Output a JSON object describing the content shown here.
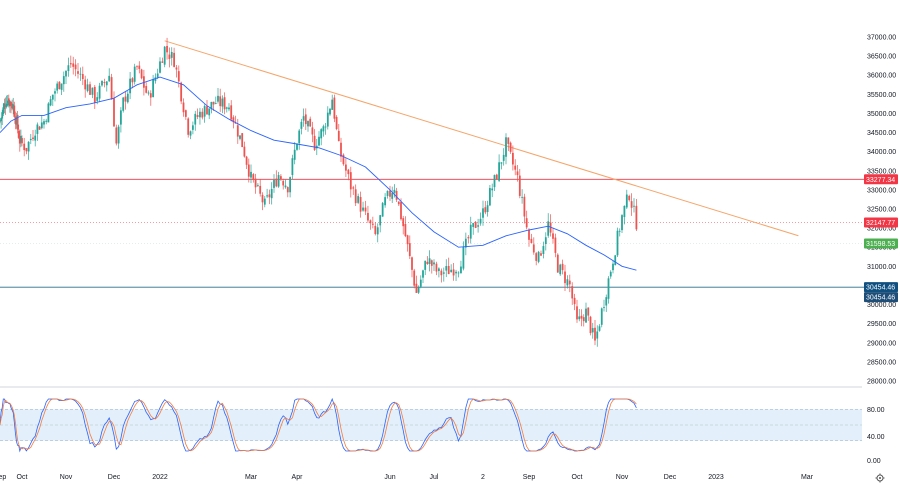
{
  "chart_data": {
    "type": "candlestick",
    "colors": {
      "up": "#26a69a",
      "down": "#ef5350",
      "ma": "#2962ff",
      "trendline": "#f5a56a",
      "resistance": "#f23645",
      "support": "#2a6f8a",
      "stoch_k": "#2962ff",
      "stoch_d": "#f57c3c",
      "stoch_band": "#e3f0fb",
      "tag_red": "#f23645",
      "tag_green": "#4caf50",
      "tag_blue1": "#0f5080",
      "tag_blue2": "#1e4d78"
    },
    "price_axis": {
      "min": 28000,
      "max": 37000,
      "ticks": [
        "37000.00",
        "36500.00",
        "36000.00",
        "35500.00",
        "35000.00",
        "34500.00",
        "34000.00",
        "33500.00",
        "33000.00",
        "32500.00",
        "32000.00",
        "31500.00",
        "31000.00",
        "30500.00",
        "30000.00",
        "29500.00",
        "29000.00",
        "28500.00",
        "28000.00"
      ]
    },
    "x_axis": {
      "labels": [
        {
          "text": "Sep",
          "month": 0
        },
        {
          "text": "Oct",
          "month": 1
        },
        {
          "text": "Nov",
          "month": 2
        },
        {
          "text": "Dec",
          "month": 3
        },
        {
          "text": "2022",
          "month": 4
        },
        {
          "text": "Mar",
          "month": 6
        },
        {
          "text": "Apr",
          "month": 7
        },
        {
          "text": "Jun",
          "month": 9
        },
        {
          "text": "Jul",
          "month": 10
        },
        {
          "text": "2",
          "month": 11
        },
        {
          "text": "Sep",
          "month": 12
        },
        {
          "text": "Oct",
          "month": 13
        },
        {
          "text": "Nov",
          "month": 14
        },
        {
          "text": "Dec",
          "month": 15
        },
        {
          "text": "2023",
          "month": 16
        },
        {
          "text": "Mar",
          "month": 18
        }
      ]
    },
    "key_points": [
      [
        0,
        34800
      ],
      [
        0.3,
        35400
      ],
      [
        0.6,
        35200
      ],
      [
        0.9,
        34300
      ],
      [
        1.1,
        34100
      ],
      [
        1.3,
        34600
      ],
      [
        1.5,
        34800
      ],
      [
        1.7,
        35500
      ],
      [
        2.1,
        36300
      ],
      [
        2.35,
        35900
      ],
      [
        2.6,
        35400
      ],
      [
        2.9,
        36000
      ],
      [
        3.05,
        34200
      ],
      [
        3.2,
        35300
      ],
      [
        3.5,
        36200
      ],
      [
        3.75,
        35400
      ],
      [
        4.1,
        36700
      ],
      [
        4.3,
        36400
      ],
      [
        4.45,
        35500
      ],
      [
        4.6,
        34600
      ],
      [
        4.85,
        35000
      ],
      [
        5.2,
        35300
      ],
      [
        5.5,
        35200
      ],
      [
        5.8,
        34200
      ],
      [
        6.0,
        33300
      ],
      [
        6.3,
        32600
      ],
      [
        6.6,
        33400
      ],
      [
        6.8,
        33100
      ],
      [
        7.0,
        34300
      ],
      [
        7.15,
        34900
      ],
      [
        7.4,
        34200
      ],
      [
        7.6,
        34600
      ],
      [
        7.8,
        35400
      ],
      [
        7.95,
        34100
      ],
      [
        8.2,
        33100
      ],
      [
        8.5,
        32300
      ],
      [
        8.7,
        31800
      ],
      [
        8.9,
        32700
      ],
      [
        9.1,
        33100
      ],
      [
        9.35,
        31800
      ],
      [
        9.6,
        30300
      ],
      [
        9.85,
        31200
      ],
      [
        10.1,
        30800
      ],
      [
        10.3,
        30900
      ],
      [
        10.5,
        31000
      ],
      [
        10.75,
        31900
      ],
      [
        11.0,
        32400
      ],
      [
        11.3,
        33400
      ],
      [
        11.5,
        34200
      ],
      [
        11.75,
        33300
      ],
      [
        12.0,
        31700
      ],
      [
        12.2,
        31200
      ],
      [
        12.4,
        32100
      ],
      [
        12.6,
        31000
      ],
      [
        12.85,
        30500
      ],
      [
        13.0,
        29500
      ],
      [
        13.2,
        29800
      ],
      [
        13.4,
        29000
      ],
      [
        13.6,
        30100
      ],
      [
        13.8,
        31200
      ],
      [
        14.0,
        32300
      ],
      [
        14.15,
        32900
      ],
      [
        14.3,
        32148
      ]
    ],
    "ma_points": [
      [
        0,
        34500
      ],
      [
        0.5,
        34800
      ],
      [
        1,
        34950
      ],
      [
        1.5,
        34950
      ],
      [
        2,
        35150
      ],
      [
        2.5,
        35250
      ],
      [
        3,
        35400
      ],
      [
        3.5,
        35750
      ],
      [
        4,
        35950
      ],
      [
        4.5,
        35750
      ],
      [
        5,
        35200
      ],
      [
        5.5,
        34850
      ],
      [
        6,
        34550
      ],
      [
        6.5,
        34300
      ],
      [
        7,
        34200
      ],
      [
        7.5,
        34100
      ],
      [
        8,
        33900
      ],
      [
        8.5,
        33600
      ],
      [
        9,
        33000
      ],
      [
        9.5,
        32400
      ],
      [
        10,
        31900
      ],
      [
        10.5,
        31500
      ],
      [
        11,
        31550
      ],
      [
        11.5,
        31800
      ],
      [
        12,
        31950
      ],
      [
        12.4,
        32050
      ],
      [
        12.8,
        31850
      ],
      [
        13.2,
        31550
      ],
      [
        13.6,
        31300
      ],
      [
        14.0,
        31000
      ],
      [
        14.3,
        30900
      ]
    ],
    "trendline": {
      "from": [
        4.1,
        36900
      ],
      "to": [
        17.8,
        31800
      ]
    },
    "resistance": {
      "value": 33277.34,
      "label": "33277.34"
    },
    "support": {
      "value": 30454.46,
      "label": "30454.46",
      "label2": "30454.46"
    },
    "current": {
      "value": 32147.77,
      "label": "32147.77"
    },
    "green_level": {
      "value": 31598.53,
      "label": "31598.53"
    },
    "stoch_axis": {
      "ticks": [
        "80.00",
        "40.00",
        "0.00"
      ]
    }
  }
}
